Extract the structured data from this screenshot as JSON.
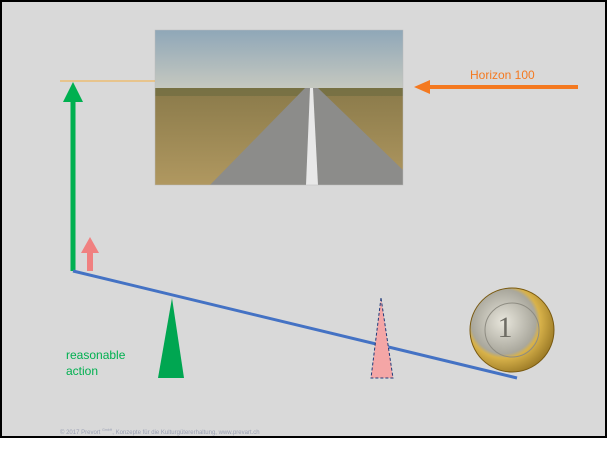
{
  "labels": {
    "horizon": "Horizon 100",
    "action_line1": "reasonable",
    "action_line2": "action"
  },
  "footer": {
    "prefix": "© 2017 Prevort ",
    "sup": "GmbH",
    "rest": ", Konzepte für die Kulturgütererhaltung, www.prevart.ch"
  }
}
